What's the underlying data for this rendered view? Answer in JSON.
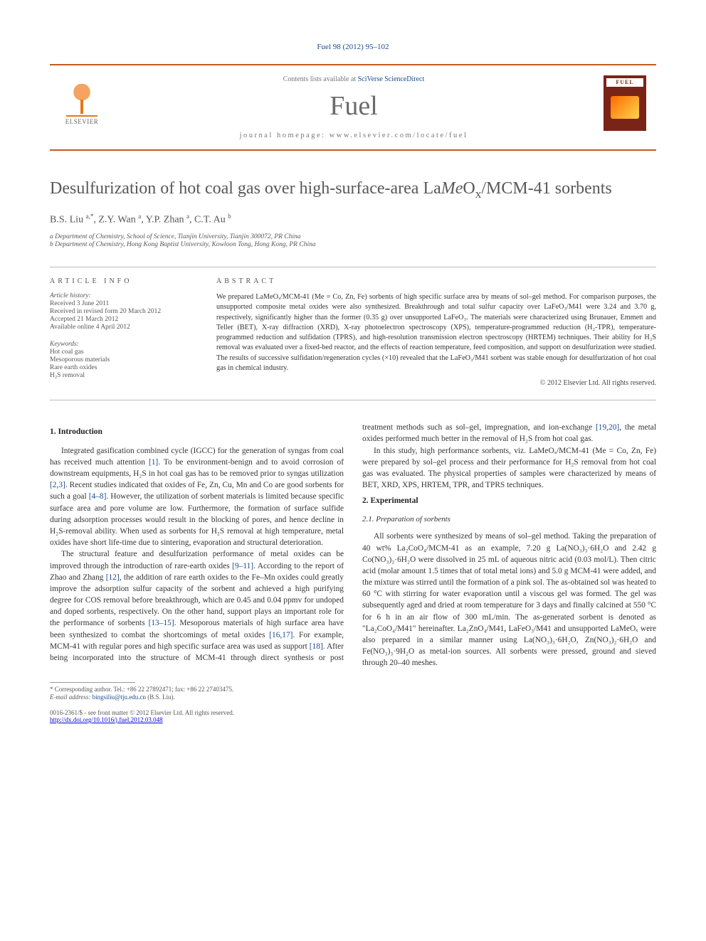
{
  "top_citation": "Fuel 98 (2012) 95–102",
  "header": {
    "contents_prefix": "Contents lists available at ",
    "contents_link": "SciVerse ScienceDirect",
    "journal": "Fuel",
    "homepage_prefix": "journal homepage: ",
    "homepage_url": "www.elsevier.com/locate/fuel",
    "publisher": "ELSEVIER",
    "cover_label": "FUEL"
  },
  "title_parts": {
    "pre": "Desulfurization of hot coal gas over high-surface-area La",
    "me": "Me",
    "post": "O",
    "subx": "x",
    "tail": "/MCM-41 sorbents"
  },
  "authors": {
    "a1_name": "B.S. Liu ",
    "a1_sup": "a,",
    "a1_cor": "*",
    "a2_name": ", Z.Y. Wan ",
    "a2_sup": "a",
    "a3_name": ", Y.P. Zhan ",
    "a3_sup": "a",
    "a4_name": ", C.T. Au ",
    "a4_sup": "b"
  },
  "affils": {
    "a": "a Department of Chemistry, School of Science, Tianjin University, Tianjin 300072, PR China",
    "b": "b Department of Chemistry, Hong Kong Baptist University, Kowloon Tong, Hong Kong, PR China"
  },
  "info_left": {
    "heading": "ARTICLE INFO",
    "hist_label": "Article history:",
    "h1": "Received 3 June 2011",
    "h2": "Received in revised form 20 March 2012",
    "h3": "Accepted 21 March 2012",
    "h4": "Available online 4 April 2012",
    "kw_label": "Keywords:",
    "k1": "Hot coal gas",
    "k2": "Mesoporous materials",
    "k3": "Rare earth oxides",
    "k4": "H₂S removal"
  },
  "info_right": {
    "heading": "ABSTRACT",
    "body": "We prepared LaMeOₓ/MCM-41 (Me = Co, Zn, Fe) sorbents of high specific surface area by means of sol–gel method. For comparison purposes, the unsupported composite metal oxides were also synthesized. Breakthrough and total sulfur capacity over LaFeO₃/M41 were 3.24 and 3.70 g, respectively, significantly higher than the former (0.35 g) over unsupported LaFeO₃. The materials were characterized using Brunauer, Emmett and Teller (BET), X-ray diffraction (XRD), X-ray photoelectron spectroscopy (XPS), temperature-programmed reduction (H₂-TPR), temperature-programmed reduction and sulfidation (TPRS), and high-resolution transmission electron spectroscopy (HRTEM) techniques. Their ability for H₂S removal was evaluated over a fixed-bed reactor, and the effects of reaction temperature, feed composition, and support on desulfurization were studied. The results of successive sulfidation/regeneration cycles (×10) revealed that the LaFeO₃/M41 sorbent was stable enough for desulfurization of hot coal gas in chemical industry.",
    "copyright": "© 2012 Elsevier Ltd. All rights reserved."
  },
  "sec1": {
    "heading": "1. Introduction",
    "p1a": "Integrated gasification combined cycle (IGCC) for the generation of syngas from coal has received much attention ",
    "p1r1": "[1]",
    "p1b": ". To be environment-benign and to avoid corrosion of downstream equipments, H₂S in hot coal gas has to be removed prior to syngas utilization ",
    "p1r2": "[2,3]",
    "p1c": ". Recent studies indicated that oxides of Fe, Zn, Cu, Mn and Co are good sorbents for such a goal ",
    "p1r3": "[4–8]",
    "p1d": ". However, the utilization of sorbent materials is limited because specific surface area and pore volume are low. Furthermore, the formation of surface sulfide during adsorption processes would result in the blocking of pores, and hence decline in H₂S-removal ability. When used as sorbents for H₂S removal at high temperature, metal oxides have short life-time due to sintering, evaporation and structural deterioration.",
    "p2a": "The structural feature and desulfurization performance of metal oxides can be improved through the introduction of rare-earth oxides ",
    "p2r1": "[9–11]",
    "p2b": ". According to the report of Zhao and Zhang ",
    "p2r2": "[12]",
    "p2c": ", the addition of rare earth oxides to the Fe–Mn oxides could greatly improve the adsorption sulfur capacity of the sorbent and achieved a high purifying degree for COS removal before breakthrough, which are 0.45 and 0.04 ppmv for undoped and doped sorbents, respectively. On the other hand, support plays an important role for the performance of sorbents ",
    "p2r3": "[13–15]",
    "p2d": ". Mesoporous materials of high surface area have been synthesized to combat the shortcomings of metal oxides ",
    "p2r4": "[16,17]",
    "p2e": ". For example, MCM-41 with regular pores and high specific surface area was used as support ",
    "p2r5": "[18]",
    "p2f": ". After being incorporated into the structure of MCM-41 through direct synthesis or post treatment methods such as sol–gel, impregnation, and ion-exchange ",
    "p2r6": "[19,20]",
    "p2g": ", the metal oxides performed much better in the removal of H₂S from hot coal gas.",
    "p3": "In this study, high performance sorbents, viz. LaMeOₓ/MCM-41 (Me = Co, Zn, Fe) were prepared by sol–gel process and their performance for H₂S removal from hot coal gas was evaluated. The physical properties of samples were characterized by means of BET, XRD, XPS, HRTEM, TPR, and TPRS techniques."
  },
  "sec2": {
    "heading": "2. Experimental",
    "sub1": "2.1. Preparation of sorbents",
    "p1": "All sorbents were synthesized by means of sol–gel method. Taking the preparation of 40 wt% La₂CoO₄/MCM-41 as an example, 7.20 g La(NO₃)₃·6H₂O and 2.42 g Co(NO₃)₂·6H₂O were dissolved in 25 mL of aqueous nitric acid (0.03 mol/L). Then citric acid (molar amount 1.5 times that of total metal ions) and 5.0 g MCM-41 were added, and the mixture was stirred until the formation of a pink sol. The as-obtained sol was heated to 60 °C with stirring for water evaporation until a viscous gel was formed. The gel was subsequently aged and dried at room temperature for 3 days and finally calcined at 550 °C for 6 h in an air flow of 300 mL/min. The as-generated sorbent is denoted as \"La₂CoO₄/M41\" hereinafter. La₂ZnO₄/M41, LaFeO₃/M41 and unsupported LaMeOₓ were also prepared in a similar manner using La(NO₃)₃·6H₂O, Zn(NO₃)₂·6H₂O and Fe(NO₃)₃·9H₂O as metal-ion sources. All sorbents were pressed, ground and sieved through 20–40 meshes."
  },
  "footnote": {
    "corr": "* Corresponding author. Tel.: +86 22 27892471; fax: +86 22 27403475.",
    "email_label": "E-mail address: ",
    "email": "bingsiliu@tju.edu.cn",
    "email_suffix": " (B.S. Liu)."
  },
  "bottom": {
    "left1": "0016-2361/$ - see front matter © 2012 Elsevier Ltd. All rights reserved.",
    "left2": "http://dx.doi.org/10.1016/j.fuel.2012.03.048"
  },
  "colors": {
    "rule": "#c45a1e",
    "link": "#1a4b8c",
    "journal": "#6a6a6a"
  }
}
